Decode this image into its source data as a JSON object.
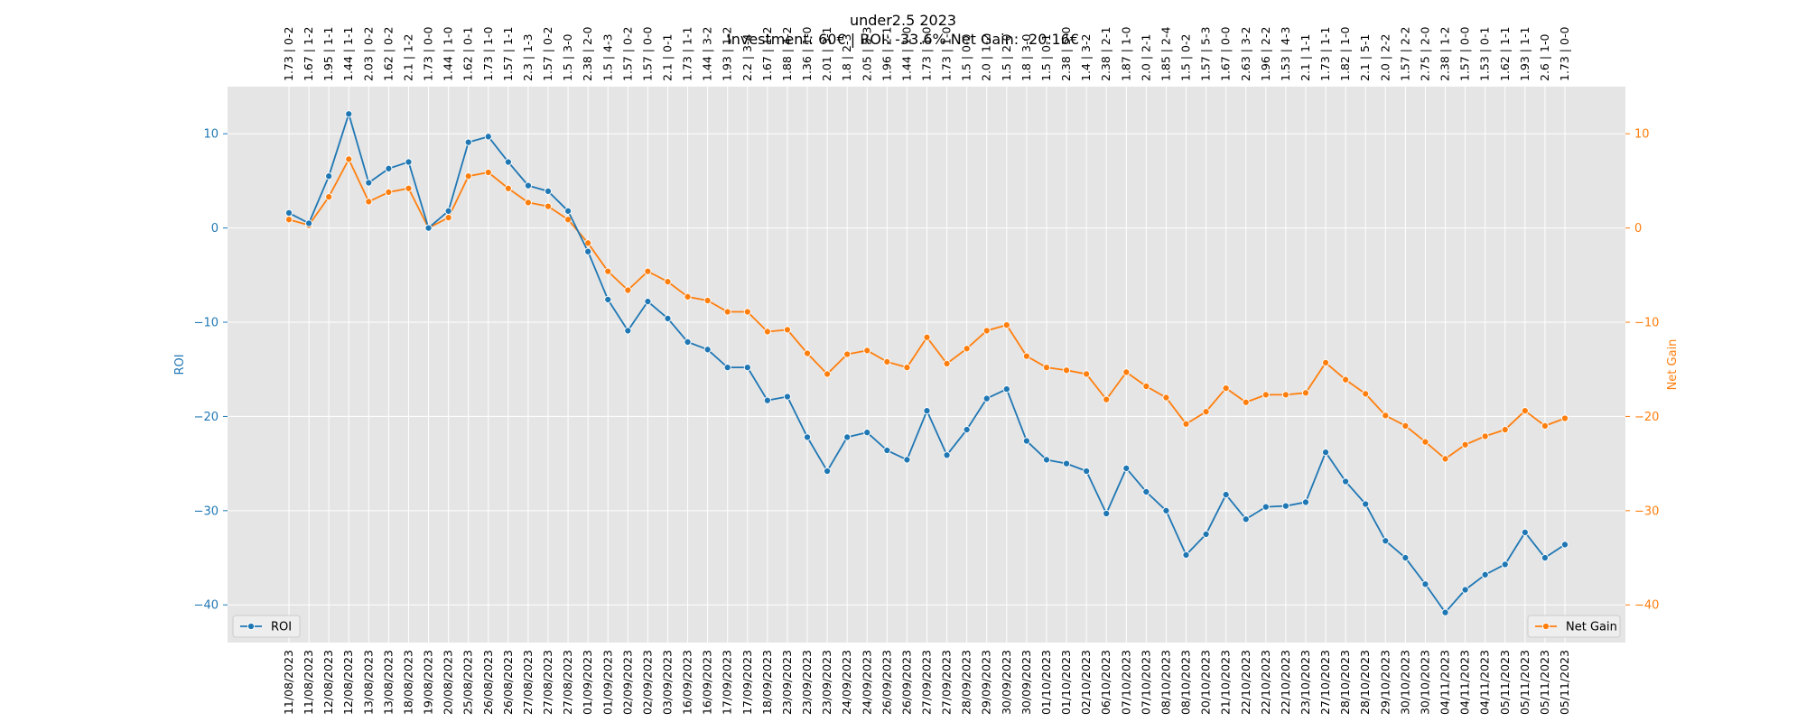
{
  "chart_data": {
    "type": "line",
    "title": "under2.5 2023",
    "subtitle": "Investment: 60€ | ROI: -33.6% Net Gain: -20.16€",
    "ylabel": "ROI",
    "y2label": "Net Gain",
    "ylim": [
      -44,
      15
    ],
    "y2lim": [
      -44,
      15
    ],
    "yticks": [
      10,
      0,
      -10,
      -20,
      -30,
      -40
    ],
    "ytick_labels": [
      "10",
      "0",
      "−10",
      "−20",
      "−30",
      "−40"
    ],
    "grid": true,
    "legend_roi_position": "lower-left",
    "legend_net_position": "lower-right",
    "colors": {
      "roi": "#1f77b4",
      "net": "#ff7f0e",
      "plot_bg": "#e5e5e5",
      "grid": "#ffffff"
    },
    "x": [
      "11/08/2023",
      "11/08/2023",
      "12/08/2023",
      "12/08/2023",
      "13/08/2023",
      "13/08/2023",
      "18/08/2023",
      "19/08/2023",
      "20/08/2023",
      "25/08/2023",
      "26/08/2023",
      "26/08/2023",
      "27/08/2023",
      "27/08/2023",
      "27/08/2023",
      "01/09/2023",
      "01/09/2023",
      "02/09/2023",
      "02/09/2023",
      "03/09/2023",
      "16/09/2023",
      "16/09/2023",
      "17/09/2023",
      "17/09/2023",
      "18/09/2023",
      "23/09/2023",
      "23/09/2023",
      "23/09/2023",
      "24/09/2023",
      "24/09/2023",
      "26/09/2023",
      "26/09/2023",
      "27/09/2023",
      "27/09/2023",
      "28/09/2023",
      "29/09/2023",
      "30/09/2023",
      "30/09/2023",
      "01/10/2023",
      "01/10/2023",
      "02/10/2023",
      "06/10/2023",
      "07/10/2023",
      "07/10/2023",
      "08/10/2023",
      "08/10/2023",
      "20/10/2023",
      "21/10/2023",
      "22/10/2023",
      "22/10/2023",
      "22/10/2023",
      "23/10/2023",
      "27/10/2023",
      "28/10/2023",
      "28/10/2023",
      "29/10/2023",
      "30/10/2023",
      "30/10/2023",
      "04/11/2023",
      "04/11/2023",
      "04/11/2023",
      "05/11/2023",
      "05/11/2023",
      "05/11/2023",
      "05/11/2023"
    ],
    "match_labels": [
      "1.73 | 0-2",
      "1.67 | 1-2",
      "1.95 | 1-1",
      "1.44 | 1-1",
      "2.03 | 0-2",
      "1.62 | 0-2",
      "2.1 | 1-2",
      "1.73 | 0-0",
      "1.44 | 1-0",
      "1.62 | 0-1",
      "1.73 | 1-0",
      "1.57 | 1-1",
      "2.3 | 1-3",
      "1.57 | 0-2",
      "1.5 | 3-0",
      "2.38 | 2-0",
      "1.5 | 4-3",
      "1.57 | 0-2",
      "1.57 | 0-0",
      "2.1 | 0-1",
      "1.73 | 1-1",
      "1.44 | 3-2",
      "1.93 | 1-2",
      "2.2 | 3-4",
      "1.67 | 1-2",
      "1.88 | 4-2",
      "1.36 | 1-0",
      "2.01 | 3-1",
      "1.8 | 2-3",
      "2.05 | 5-3",
      "1.96 | 2-1",
      "1.44 | 1-0",
      "1.73 | 1-0",
      "1.73 | 1-0",
      "1.5 | 0-0",
      "2.0 | 1-2",
      "1.5 | 2-0",
      "1.8 | 3-0",
      "1.5 | 0-1",
      "2.38 | 5-0",
      "1.4 | 3-2",
      "2.38 | 2-1",
      "1.87 | 1-0",
      "2.0 | 2-1",
      "1.85 | 2-4",
      "1.5 | 0-2",
      "1.57 | 5-3",
      "1.67 | 0-0",
      "2.63 | 3-2",
      "1.96 | 2-2",
      "1.53 | 4-3",
      "2.1 | 1-1",
      "1.73 | 1-1",
      "1.82 | 1-0",
      "2.1 | 5-1",
      "2.0 | 2-2",
      "1.57 | 2-2",
      "2.75 | 2-0",
      "2.38 | 1-2",
      "1.57 | 0-0",
      "1.53 | 0-1",
      "1.62 | 1-1",
      "1.93 | 1-1",
      "2.6 | 1-0",
      "1.73 | 0-0"
    ],
    "series": [
      {
        "name": "ROI",
        "values": [
          1.6,
          0.5,
          5.5,
          12.1,
          4.8,
          6.3,
          7.0,
          0.0,
          1.8,
          9.1,
          9.7,
          7.0,
          4.5,
          3.9,
          1.8,
          -2.5,
          -7.6,
          -10.9,
          -7.8,
          -9.6,
          -12.1,
          -12.9,
          -14.8,
          -14.8,
          -18.3,
          -17.9,
          -22.2,
          -25.8,
          -22.2,
          -21.7,
          -23.6,
          -24.6,
          -19.4,
          -24.1,
          -21.4,
          -18.1,
          -17.1,
          -22.6,
          -24.6,
          -25.0,
          -25.8,
          -30.3,
          -25.5,
          -28.0,
          -30.0,
          -34.7,
          -32.5,
          -28.3,
          -30.9,
          -29.6,
          -29.5,
          -29.1,
          -23.8,
          -26.9,
          -29.3,
          -33.2,
          -35.0,
          -37.8,
          -40.8,
          -38.4,
          -36.8,
          -35.7,
          -32.3,
          -35.0,
          -33.6
        ]
      },
      {
        "name": "Net Gain",
        "values": [
          0.9,
          0.3,
          3.3,
          7.3,
          2.8,
          3.8,
          4.2,
          0.0,
          1.1,
          5.5,
          5.9,
          4.2,
          2.7,
          2.3,
          0.9,
          -1.6,
          -4.6,
          -6.6,
          -4.6,
          -5.7,
          -7.3,
          -7.7,
          -8.9,
          -8.9,
          -11.0,
          -10.8,
          -13.3,
          -15.5,
          -13.4,
          -13.0,
          -14.2,
          -14.8,
          -11.6,
          -14.4,
          -12.8,
          -10.9,
          -10.3,
          -13.6,
          -14.8,
          -15.1,
          -15.5,
          -18.2,
          -15.3,
          -16.8,
          -18.0,
          -20.8,
          -19.5,
          -17.0,
          -18.5,
          -17.7,
          -17.7,
          -17.5,
          -14.3,
          -16.1,
          -17.6,
          -19.9,
          -21.0,
          -22.7,
          -24.5,
          -23.0,
          -22.1,
          -21.4,
          -19.4,
          -21.0,
          -20.2
        ]
      }
    ]
  }
}
